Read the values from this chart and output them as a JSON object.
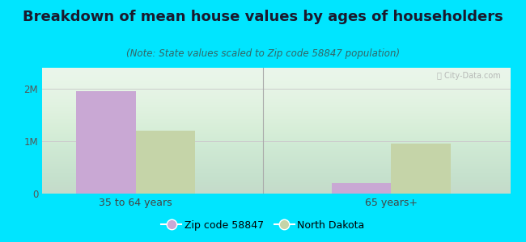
{
  "title": "Breakdown of mean house values by ages of householders",
  "subtitle": "(Note: State values scaled to Zip code 58847 population)",
  "categories": [
    "35 to 64 years",
    "65 years+"
  ],
  "zip_values": [
    1950000,
    200000
  ],
  "state_values": [
    1200000,
    950000
  ],
  "zip_color": "#c9a8d4",
  "state_color": "#c5d4a8",
  "background_color": "#00e5ff",
  "plot_bg_color": "#e8f5e9",
  "yticks": [
    0,
    1000000,
    2000000
  ],
  "ytick_labels": [
    "0",
    "1M",
    "2M"
  ],
  "ylim": [
    0,
    2400000
  ],
  "legend_zip_label": "Zip code 58847",
  "legend_state_label": "North Dakota",
  "title_fontsize": 13,
  "subtitle_fontsize": 8.5,
  "bar_width": 0.35,
  "group_positions": [
    1.0,
    2.5
  ]
}
